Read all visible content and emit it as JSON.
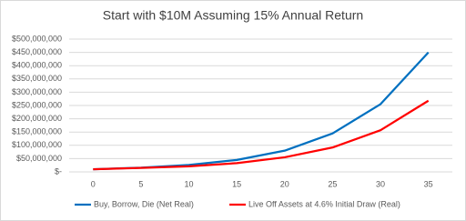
{
  "chart_data": {
    "type": "line",
    "title": "Start with $10M Assuming 15% Annual Return",
    "categories": [
      "0",
      "5",
      "10",
      "15",
      "20",
      "25",
      "30",
      "35"
    ],
    "series": [
      {
        "name": "Buy, Borrow, Die (Net Real)",
        "color": "#0070c0",
        "values": [
          10000000,
          16000000,
          26000000,
          45000000,
          80000000,
          145000000,
          255000000,
          450000000
        ]
      },
      {
        "name": "Live Off Assets at 4.6% Initial Draw (Real)",
        "color": "#ff0000",
        "values": [
          10000000,
          15000000,
          21000000,
          33000000,
          55000000,
          92000000,
          157000000,
          268000000
        ]
      }
    ],
    "ylim": [
      0,
      500000000
    ],
    "yticks": [
      {
        "value": 0,
        "label": "$-"
      },
      {
        "value": 50000000,
        "label": "$50,000,000"
      },
      {
        "value": 100000000,
        "label": "$100,000,000"
      },
      {
        "value": 150000000,
        "label": "$150,000,000"
      },
      {
        "value": 200000000,
        "label": "$200,000,000"
      },
      {
        "value": 250000000,
        "label": "$250,000,000"
      },
      {
        "value": 300000000,
        "label": "$300,000,000"
      },
      {
        "value": 350000000,
        "label": "$350,000,000"
      },
      {
        "value": 400000000,
        "label": "$400,000,000"
      },
      {
        "value": 450000000,
        "label": "$450,000,000"
      },
      {
        "value": 500000000,
        "label": "$500,000,000"
      }
    ],
    "grid": true,
    "legend": "bottom"
  }
}
